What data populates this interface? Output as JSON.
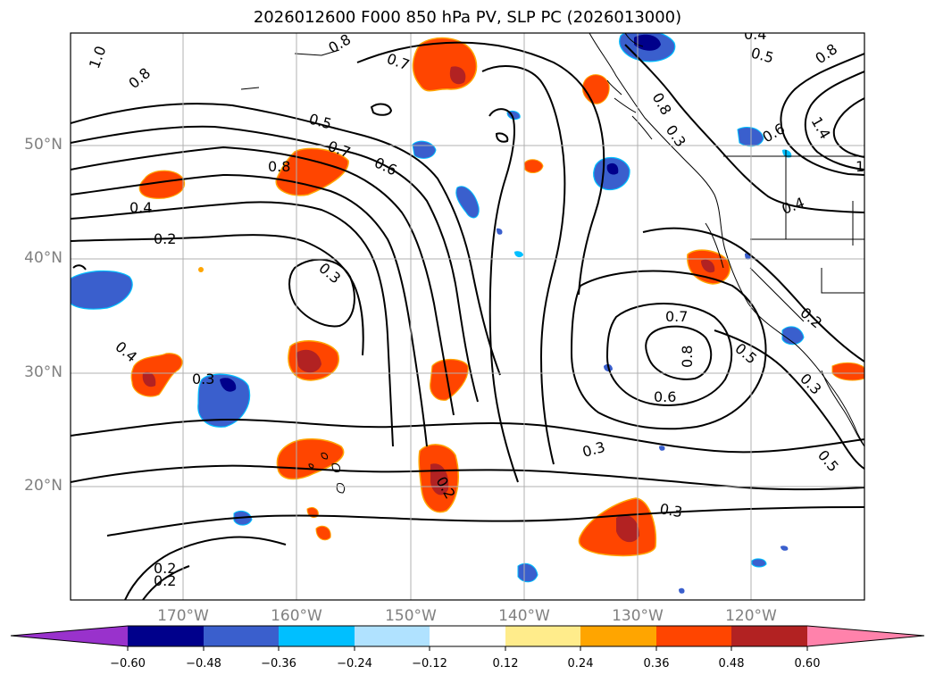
{
  "title": "2026012600 F000 850 hPa PV, SLP PC (2026013000)",
  "lat_labels": [
    "50°N",
    "40°N",
    "30°N",
    "20°N"
  ],
  "lon_labels": [
    "170°W",
    "160°W",
    "150°W",
    "140°W",
    "130°W",
    "120°W"
  ],
  "contour_labels": [
    "1.0",
    "0.8",
    "0.7",
    "0.8",
    "0.5",
    "0.7",
    "0.6",
    "0.8",
    "0.4",
    "0.2",
    "0.3",
    "0.4",
    "0.3",
    "0.2",
    "0.3",
    "0.2",
    "0.2",
    "0.7",
    "0.8",
    "0.6",
    "0.3",
    "0.3",
    "0.5",
    "0.8",
    "0.4",
    "0.5",
    "0.8",
    "0.6",
    "0.4",
    "1.4",
    "1",
    "0.2",
    "0.3",
    "0.5"
  ],
  "colorbar": {
    "ticks": [
      "−0.60",
      "−0.48",
      "−0.36",
      "−0.24",
      "−0.12",
      "0.12",
      "0.24",
      "0.36",
      "0.48",
      "0.60"
    ],
    "colors": [
      "#9932CC",
      "#00008B",
      "#3A5FCD",
      "#00BFFF",
      "#B0E2FF",
      "#FFFFFF",
      "#FFEC8B",
      "#FFA500",
      "#FF4500",
      "#B22222",
      "#FF82AB"
    ]
  },
  "chart_data": {
    "type": "map",
    "title": "2026012600 F000 850 hPa PV, SLP PC (2026013000)",
    "field": "850 hPa PV (shaded), SLP PC (contours)",
    "extent": {
      "lon": [
        -180,
        -110
      ],
      "lat": [
        10,
        60
      ]
    },
    "levels": [
      -0.6,
      -0.48,
      -0.36,
      -0.24,
      -0.12,
      0.12,
      0.24,
      0.36,
      0.48,
      0.6
    ],
    "colors": [
      "#9932CC",
      "#00008B",
      "#3A5FCD",
      "#00BFFF",
      "#B0E2FF",
      "#FFFFFF",
      "#FFEC8B",
      "#FFA500",
      "#FF4500",
      "#B22222",
      "#FF82AB"
    ],
    "extend": "both"
  }
}
